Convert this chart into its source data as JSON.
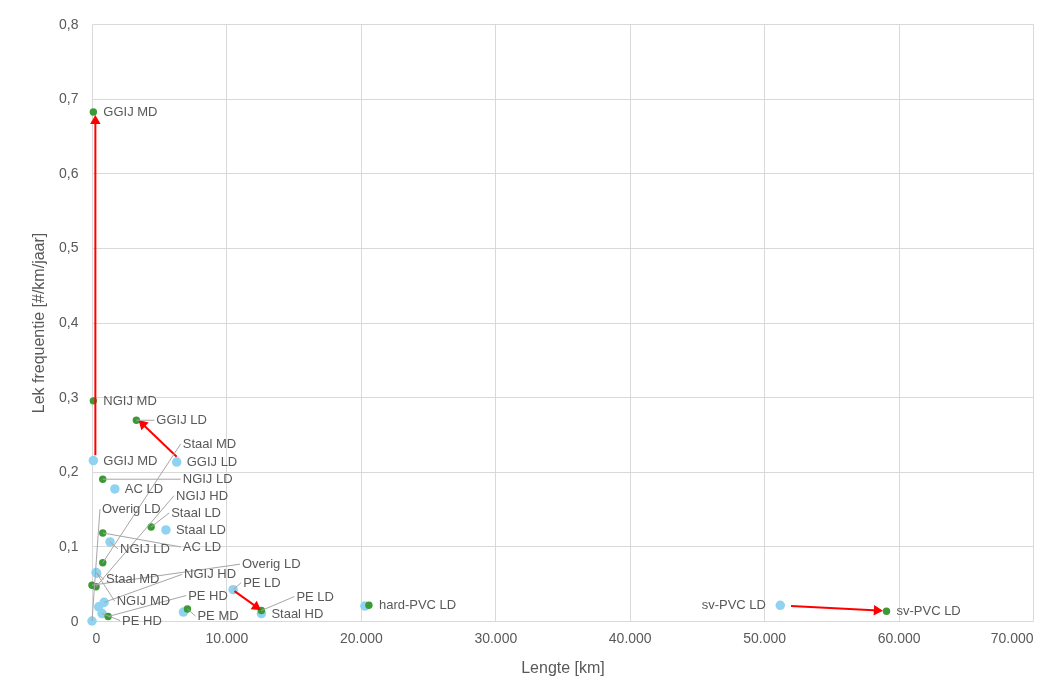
{
  "chart_data": {
    "type": "scatter",
    "xlabel": "Lengte   [km]",
    "ylabel": "Lek frequentie  [#/km/jaar]",
    "xlim": [
      0,
      70000
    ],
    "ylim": [
      0,
      0.8
    ],
    "xticks": [
      0,
      {
        "value": 10000,
        "label": "10.000"
      },
      {
        "value": 20000,
        "label": "20.000"
      },
      {
        "value": 30000,
        "label": "30.000"
      },
      {
        "value": 40000,
        "label": "40.000"
      },
      {
        "value": 50000,
        "label": "50.000"
      },
      {
        "value": 60000,
        "label": "60.000"
      },
      {
        "value": 70000,
        "label": "70.000"
      }
    ],
    "yticks": [
      0,
      {
        "value": 0.1,
        "label": "0,1"
      },
      {
        "value": 0.2,
        "label": "0,2"
      },
      {
        "value": 0.3,
        "label": "0,3"
      },
      {
        "value": 0.4,
        "label": "0,4"
      },
      {
        "value": 0.5,
        "label": "0,5"
      },
      {
        "value": 0.6,
        "label": "0,6"
      },
      {
        "value": 0.7,
        "label": "0,7"
      },
      {
        "value": 0.8,
        "label": "0,8"
      }
    ],
    "grid": true,
    "marker": "circle",
    "series": [
      {
        "color": "#8fd3f0",
        "x": [
          100,
          6300,
          1700,
          5500,
          1340,
          300,
          350,
          900,
          500,
          750,
          0,
          6800,
          10500,
          12600,
          20300,
          51200
        ],
        "values": [
          0.215,
          0.213,
          0.177,
          0.122,
          0.106,
          0.065,
          0.064,
          0.025,
          0.019,
          0.01,
          0,
          0.012,
          0.042,
          0.01,
          0.02,
          0.021
        ]
      },
      {
        "color": "#3a9a35",
        "x": [
          100,
          100,
          3300,
          800,
          800,
          4400,
          800,
          0,
          300,
          1200,
          7100,
          12600,
          20600,
          59100
        ],
        "values": [
          0.682,
          0.295,
          0.269,
          0.19,
          0.118,
          0.126,
          0.078,
          0.048,
          0.046,
          0.006,
          0.016,
          0.014,
          0.021,
          0.013
        ]
      },
      {
        "type": "line",
        "color": "#ff0000",
        "marker": "triangle",
        "x": [
          250,
          250,
          null,
          6300,
          3700,
          null,
          10600,
          12300,
          null,
          52000,
          58500
        ],
        "values": [
          0.222,
          0.672,
          null,
          0.22,
          0.265,
          null,
          0.04,
          0.018,
          null,
          0.02,
          0.014
        ]
      }
    ],
    "annotations": [
      {
        "text": "GGIJ MD",
        "x": 100,
        "y": 0.215
      },
      {
        "text": "GGIJ LD",
        "x": 6300,
        "y": 0.213
      },
      {
        "text": "AC LD",
        "x": 1700,
        "y": 0.177
      },
      {
        "text": "Staal LD",
        "x": 5500,
        "y": 0.122
      },
      {
        "text": "NGIJ LD",
        "x": 1340,
        "y": 0.106
      },
      {
        "text": "Staal MD",
        "x": 300,
        "y": 0.065
      },
      {
        "text": "NGIJ MD",
        "x": 350,
        "y": 0.064
      },
      {
        "text": "NGIJ HD",
        "x": 900,
        "y": 0.025
      },
      {
        "text": "PE HD",
        "x": 750,
        "y": 0.01
      },
      {
        "text": "Overig LD",
        "x": 0,
        "y": 0
      },
      {
        "text": "PE LD",
        "x": 10500,
        "y": 0.042
      },
      {
        "text": "Staal HD",
        "x": 12600,
        "y": 0.01
      },
      {
        "text": "sv-PVC LD",
        "x": 51200,
        "y": 0.021
      },
      {
        "text": "GGIJ MD",
        "x": 100,
        "y": 0.682
      },
      {
        "text": "NGIJ MD",
        "x": 100,
        "y": 0.295
      },
      {
        "text": "GGIJ LD",
        "x": 3300,
        "y": 0.269
      },
      {
        "text": "NGIJ LD",
        "x": 800,
        "y": 0.19
      },
      {
        "text": "AC LD",
        "x": 800,
        "y": 0.118
      },
      {
        "text": "Staal LD",
        "x": 4400,
        "y": 0.126
      },
      {
        "text": "Staal MD",
        "x": 800,
        "y": 0.078
      },
      {
        "text": "Overig LD",
        "x": 0,
        "y": 0.048
      },
      {
        "text": "NGIJ HD",
        "x": 300,
        "y": 0.046
      },
      {
        "text": "PE HD",
        "x": 1200,
        "y": 0.006
      },
      {
        "text": "PE MD",
        "x": 7100,
        "y": 0.016
      },
      {
        "text": "PE LD",
        "x": 12600,
        "y": 0.014
      },
      {
        "text": "hard-PVC LD",
        "x": 20600,
        "y": 0.021
      },
      {
        "text": "sv-PVC LD",
        "x": 59100,
        "y": 0.013
      }
    ]
  }
}
